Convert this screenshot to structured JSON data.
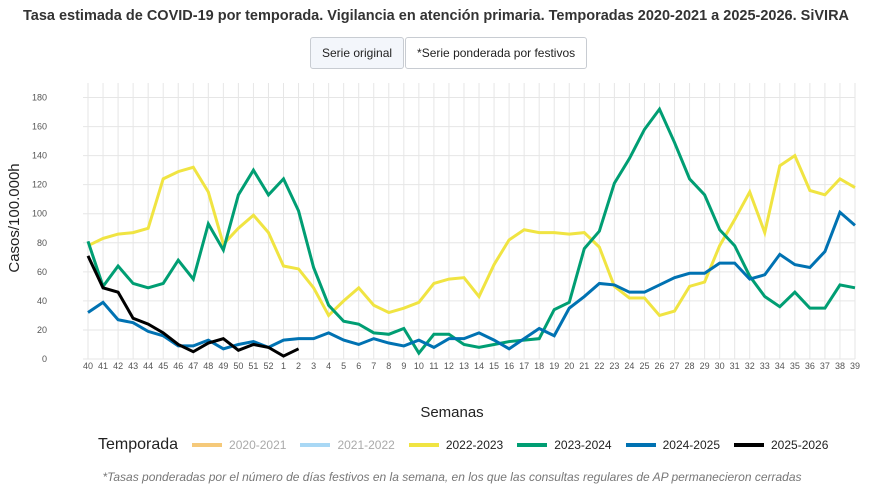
{
  "header": {
    "title": "Tasa estimada de COVID-19 por temporada. Vigilancia en atención primaria. Temporadas 2020-2021 a 2025-2026. SiVIRA"
  },
  "toggle": {
    "buttons": [
      {
        "label": "Serie original",
        "active": true
      },
      {
        "label": "*Serie ponderada por festivos",
        "active": false
      }
    ]
  },
  "footnote": "*Tasas ponderadas por el número de días festivos en la semana, en los que las consultas regulares de AP permanecieron cerradas",
  "chart_data": {
    "type": "line",
    "title": "Tasa estimada de COVID-19 por temporada. Vigilancia en atención primaria. Temporadas 2020-2021 a 2025-2026. SiVIRA",
    "xlabel": "Semanas",
    "ylabel": "Casos/100.000h",
    "ylim": [
      0,
      190
    ],
    "yticks": [
      0,
      20,
      40,
      60,
      80,
      100,
      120,
      140,
      160,
      180
    ],
    "grid": true,
    "legend_title": "Temporada",
    "legend_position": "bottom",
    "x": [
      "40",
      "41",
      "42",
      "43",
      "44",
      "45",
      "46",
      "47",
      "48",
      "49",
      "50",
      "51",
      "52",
      "1",
      "2",
      "3",
      "4",
      "5",
      "6",
      "7",
      "8",
      "9",
      "10",
      "11",
      "12",
      "13",
      "14",
      "15",
      "16",
      "17",
      "18",
      "19",
      "20",
      "21",
      "22",
      "23",
      "24",
      "25",
      "26",
      "27",
      "28",
      "29",
      "30",
      "31",
      "32",
      "33",
      "34",
      "35",
      "36",
      "37",
      "38",
      "39"
    ],
    "series": [
      {
        "name": "2020-2021",
        "color": "#f5c97a",
        "visible": false,
        "values": []
      },
      {
        "name": "2021-2022",
        "color": "#a9d8f5",
        "visible": false,
        "values": []
      },
      {
        "name": "2022-2023",
        "color": "#f0e442",
        "visible": true,
        "values": [
          78,
          83,
          86,
          87,
          90,
          124,
          129,
          132,
          115,
          79,
          90,
          99,
          87,
          64,
          62,
          49,
          30,
          40,
          49,
          37,
          32,
          35,
          39,
          52,
          55,
          56,
          43,
          65,
          82,
          89,
          87,
          87,
          86,
          87,
          77,
          50,
          42,
          42,
          30,
          33,
          50,
          53,
          78,
          96,
          115,
          87,
          133,
          140,
          116,
          113,
          124,
          118
        ]
      },
      {
        "name": "2023-2024",
        "color": "#009e73",
        "visible": true,
        "values": [
          81,
          50,
          64,
          52,
          49,
          52,
          68,
          55,
          93,
          75,
          113,
          130,
          113,
          124,
          102,
          63,
          37,
          26,
          24,
          18,
          17,
          21,
          4,
          17,
          17,
          10,
          8,
          10,
          12,
          13,
          14,
          34,
          39,
          76,
          88,
          121,
          138,
          158,
          172,
          149,
          124,
          113,
          89,
          78,
          57,
          43,
          36,
          46,
          35,
          35,
          51,
          49
        ]
      },
      {
        "name": "2024-2025",
        "color": "#0072b2",
        "visible": true,
        "values": [
          32,
          39,
          27,
          25,
          19,
          16,
          9,
          9,
          13,
          7,
          10,
          12,
          8,
          13,
          14,
          14,
          18,
          13,
          10,
          14,
          11,
          9,
          13,
          8,
          14,
          14,
          18,
          13,
          7,
          14,
          21,
          16,
          35,
          43,
          52,
          51,
          46,
          46,
          51,
          56,
          59,
          59,
          66,
          66,
          55,
          58,
          72,
          65,
          63,
          74,
          101,
          92
        ]
      },
      {
        "name": "2025-2026",
        "color": "#000000",
        "visible": true,
        "values": [
          71,
          49,
          46,
          28,
          24,
          18,
          10,
          5,
          11,
          14,
          6,
          10,
          8,
          2,
          7
        ]
      }
    ]
  }
}
